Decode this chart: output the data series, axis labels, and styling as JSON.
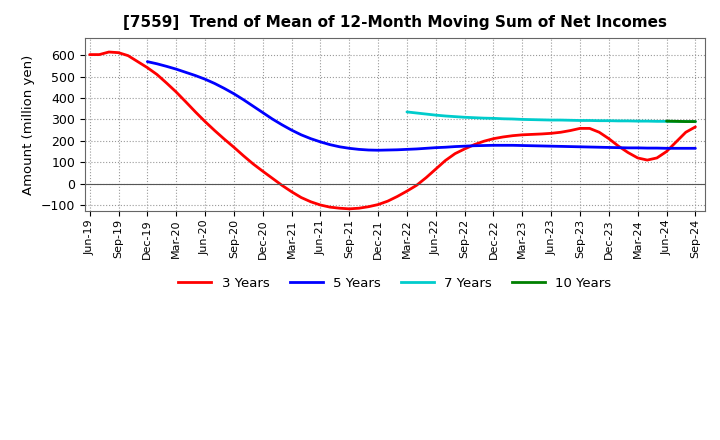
{
  "title": "[7559]  Trend of Mean of 12-Month Moving Sum of Net Incomes",
  "ylabel": "Amount (million yen)",
  "ylim": [
    -130,
    680
  ],
  "yticks": [
    -100,
    0,
    100,
    200,
    300,
    400,
    500,
    600
  ],
  "background_color": "#ffffff",
  "plot_bg_color": "#ffffff",
  "grid_color": "#999999",
  "series": {
    "3years": {
      "color": "#ff0000",
      "label": "3 Years",
      "x": [
        0,
        1,
        2,
        3,
        4,
        5,
        6,
        7,
        8,
        9,
        10,
        11,
        12,
        13,
        14,
        15,
        16,
        17,
        18,
        19,
        20,
        21,
        22,
        23,
        24,
        25,
        26,
        27,
        28,
        29,
        30,
        31,
        32,
        33,
        34,
        35,
        36,
        37,
        38,
        39,
        40,
        41,
        42,
        43,
        44,
        45,
        46,
        47,
        48,
        49,
        50,
        51,
        52,
        53,
        54,
        55,
        56,
        57,
        58,
        59,
        60,
        61,
        62,
        63
      ],
      "y": [
        603,
        603,
        615,
        612,
        598,
        570,
        542,
        510,
        470,
        428,
        382,
        335,
        290,
        248,
        208,
        170,
        130,
        92,
        58,
        25,
        -8,
        -38,
        -65,
        -85,
        -100,
        -110,
        -115,
        -118,
        -115,
        -108,
        -98,
        -82,
        -60,
        -35,
        -8,
        28,
        68,
        108,
        140,
        162,
        182,
        198,
        210,
        218,
        224,
        228,
        230,
        232,
        235,
        240,
        248,
        258,
        258,
        240,
        210,
        175,
        145,
        120,
        110,
        120,
        150,
        195,
        240,
        265
      ]
    },
    "5years": {
      "color": "#0000ff",
      "label": "5 Years",
      "x": [
        6,
        7,
        8,
        9,
        10,
        11,
        12,
        13,
        14,
        15,
        16,
        17,
        18,
        19,
        20,
        21,
        22,
        23,
        24,
        25,
        26,
        27,
        28,
        29,
        30,
        31,
        32,
        33,
        34,
        35,
        36,
        37,
        38,
        39,
        40,
        41,
        42,
        43,
        44,
        45,
        46,
        47,
        48,
        49,
        50,
        51,
        52,
        53,
        54,
        55,
        56,
        57,
        58,
        59,
        60,
        61,
        62,
        63
      ],
      "y": [
        570,
        560,
        548,
        535,
        520,
        505,
        488,
        468,
        445,
        420,
        392,
        362,
        332,
        302,
        275,
        250,
        228,
        210,
        195,
        182,
        172,
        165,
        160,
        157,
        156,
        157,
        158,
        160,
        162,
        165,
        168,
        170,
        173,
        175,
        177,
        178,
        179,
        179,
        179,
        178,
        177,
        176,
        175,
        174,
        173,
        172,
        171,
        170,
        169,
        168,
        167,
        167,
        166,
        166,
        165,
        165,
        165,
        165
      ]
    },
    "7years": {
      "color": "#00cccc",
      "label": "7 Years",
      "x": [
        33,
        34,
        35,
        36,
        37,
        38,
        39,
        40,
        41,
        42,
        43,
        44,
        45,
        46,
        47,
        48,
        49,
        50,
        51,
        52,
        53,
        54,
        55,
        56,
        57,
        58,
        59,
        60,
        61,
        62,
        63
      ],
      "y": [
        335,
        330,
        325,
        320,
        316,
        313,
        310,
        308,
        306,
        305,
        303,
        302,
        300,
        299,
        298,
        297,
        297,
        296,
        295,
        295,
        294,
        294,
        293,
        293,
        292,
        292,
        291,
        291,
        291,
        290,
        290
      ]
    },
    "10years": {
      "color": "#008000",
      "label": "10 Years",
      "x": [
        60,
        61,
        62,
        63
      ],
      "y": [
        292,
        291,
        290,
        290
      ]
    }
  },
  "xtick_labels": [
    "Jun-19",
    "Sep-19",
    "Dec-19",
    "Mar-20",
    "Jun-20",
    "Sep-20",
    "Dec-20",
    "Mar-21",
    "Jun-21",
    "Sep-21",
    "Dec-21",
    "Mar-22",
    "Jun-22",
    "Sep-22",
    "Dec-22",
    "Mar-23",
    "Jun-23",
    "Sep-23",
    "Dec-23",
    "Mar-24",
    "Jun-24",
    "Sep-24"
  ],
  "xtick_positions": [
    0,
    3,
    6,
    9,
    12,
    15,
    18,
    21,
    24,
    27,
    30,
    33,
    36,
    39,
    42,
    45,
    48,
    51,
    54,
    57,
    60,
    63
  ]
}
